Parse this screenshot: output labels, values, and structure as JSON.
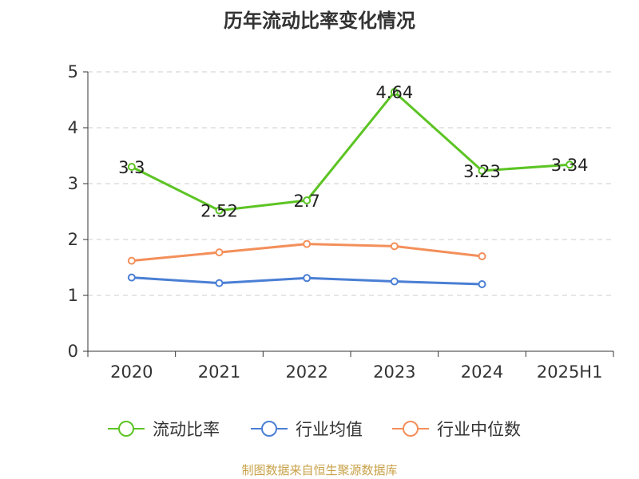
{
  "title": "历年流动比率变化情况",
  "source": "制图数据来自恒生聚源数据库",
  "colors": {
    "current_ratio": "#5cc424",
    "industry_mean": "#4a7fd4",
    "industry_median": "#f38f5a",
    "grid": "#cccccc",
    "axis": "#333333"
  },
  "chart_data": {
    "type": "line",
    "title": "历年流动比率变化情况",
    "categories": [
      "2020",
      "2021",
      "2022",
      "2023",
      "2024",
      "2025H1"
    ],
    "ylim": [
      0,
      5
    ],
    "yticks": [
      "0",
      "1",
      "2",
      "3",
      "4",
      "5"
    ],
    "grid": true,
    "legend_position": "bottom",
    "series": [
      {
        "name": "流动比率",
        "color": "#5cc424",
        "values": [
          3.3,
          2.52,
          2.7,
          4.64,
          3.23,
          3.34
        ],
        "labels": [
          "3.3",
          "2.52",
          "2.7",
          "4.64",
          "3.23",
          "3.34"
        ]
      },
      {
        "name": "行业均值",
        "color": "#4a7fd4",
        "values": [
          1.32,
          1.22,
          1.31,
          1.25,
          1.2,
          null
        ]
      },
      {
        "name": "行业中位数",
        "color": "#f38f5a",
        "values": [
          1.62,
          1.77,
          1.92,
          1.88,
          1.7,
          null
        ]
      }
    ]
  }
}
